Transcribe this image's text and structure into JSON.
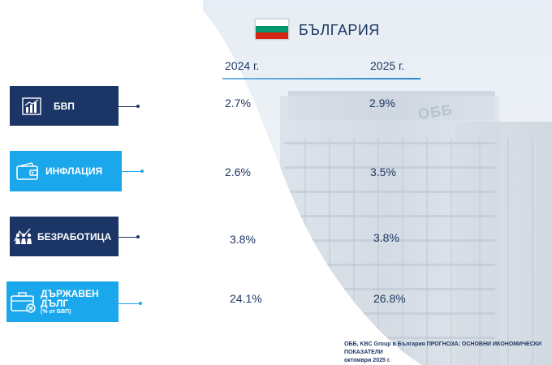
{
  "header": {
    "country": "БЪЛГАРИЯ",
    "flag_colors": [
      "#ffffff",
      "#00966e",
      "#d62612"
    ]
  },
  "years": [
    "2024 г.",
    "2025 г."
  ],
  "indicators": [
    {
      "icon": "bar-chart-icon",
      "label": "БВП",
      "sublabel": "",
      "value_2024": "2.7%",
      "value_2025": "2.9%",
      "style": "dark"
    },
    {
      "icon": "wallet-icon",
      "label": "ИНФЛАЦИЯ",
      "sublabel": "",
      "value_2024": "2.6%",
      "value_2025": "3.5%",
      "style": "light"
    },
    {
      "icon": "people-chart-icon",
      "label": "БЕЗРАБОТИЦА",
      "sublabel": "",
      "value_2024": "3.8%",
      "value_2025": "3.8%",
      "style": "dark"
    },
    {
      "icon": "briefcase-icon",
      "label_line1": "ДЪРЖАВЕН",
      "label_line2": "ДЪЛГ",
      "sublabel": "(% от БВП)",
      "value_2024": "24.1%",
      "value_2025": "26.8%",
      "style": "light"
    }
  ],
  "source_note": {
    "line1": "ОББ, KBC Group в България ПРОГНОЗА: ОСНОВНИ ИКОНОМИЧЕСКИ",
    "line2": "ПОКАЗАТЕЛИ",
    "line3": "октомври 2025 г."
  },
  "colors": {
    "dark_box": "#1b3566",
    "light_box": "#1aa7ec",
    "text": "#1f3864"
  }
}
